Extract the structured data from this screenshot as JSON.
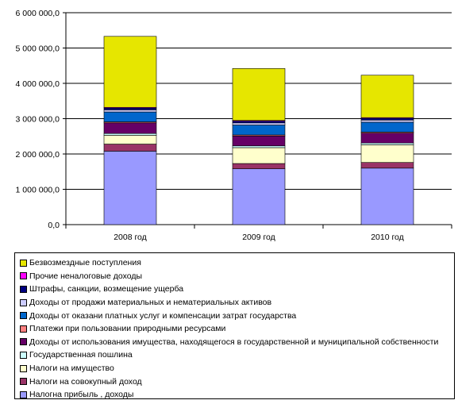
{
  "chart_data": {
    "type": "bar",
    "stacked": true,
    "categories": [
      "2008 год",
      "2009 год",
      "2010 год"
    ],
    "ylim": [
      0,
      6000000
    ],
    "yticks": [
      0,
      1000000,
      2000000,
      3000000,
      4000000,
      5000000,
      6000000
    ],
    "ytick_labels": [
      "0,0",
      "1 000 000,0",
      "2 000 000,0",
      "3 000 000,0",
      "4 000 000,0",
      "5 000 000,0",
      "6 000 000,0"
    ],
    "grid": true,
    "legend_position": "bottom",
    "series": [
      {
        "name": "Налогна прибыль , доходы",
        "color": "#9999ff",
        "values": [
          2080000,
          1580000,
          1600000
        ]
      },
      {
        "name": "Налоги на совокупный доход",
        "color": "#993366",
        "values": [
          200000,
          150000,
          160000
        ]
      },
      {
        "name": "Налоги на имущество",
        "color": "#ffffcc",
        "values": [
          250000,
          450000,
          500000
        ]
      },
      {
        "name": "Государственная пошлина",
        "color": "#ccffff",
        "values": [
          50000,
          50000,
          50000
        ]
      },
      {
        "name": "Доходы от использования имущества, находящегося в государственной и муниципальной собственности",
        "color": "#660066",
        "values": [
          300000,
          280000,
          280000
        ]
      },
      {
        "name": "Платежи при пользовании природными ресурсами",
        "color": "#ff8080",
        "values": [
          30000,
          30000,
          30000
        ]
      },
      {
        "name": "Доходы от оказани платных услуг и компенсации затрат государства",
        "color": "#0066cc",
        "values": [
          280000,
          280000,
          280000
        ]
      },
      {
        "name": "Доходы от продажи материальных и нематериальных активов",
        "color": "#ccccff",
        "values": [
          60000,
          60000,
          60000
        ]
      },
      {
        "name": "Штрафы, санкции, возмещение ущерба",
        "color": "#000080",
        "values": [
          50000,
          50000,
          50000
        ]
      },
      {
        "name": "Прочие неналоговые доходы",
        "color": "#ff00ff",
        "values": [
          20000,
          20000,
          20000
        ]
      },
      {
        "name": "Безвозмездные поступления",
        "color": "#e6e600",
        "values": [
          2010000,
          1470000,
          1200000
        ]
      }
    ]
  }
}
